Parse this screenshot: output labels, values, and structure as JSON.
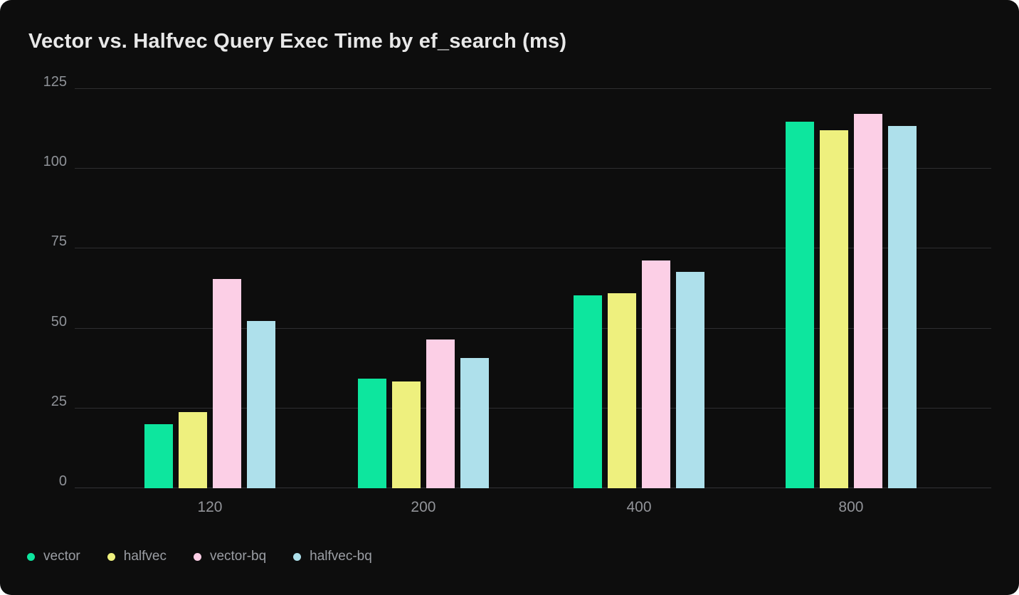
{
  "chart_data": {
    "type": "bar",
    "title": "Vector vs. Halfvec Query Exec Time by ef_search (ms)",
    "xlabel": "",
    "ylabel": "",
    "categories": [
      "120",
      "200",
      "400",
      "800"
    ],
    "series": [
      {
        "name": "vector",
        "color": "#0de69e",
        "values": [
          20.1,
          34.4,
          60.3,
          114.7
        ]
      },
      {
        "name": "halfvec",
        "color": "#eef07e",
        "values": [
          23.8,
          33.5,
          61.1,
          112.0
        ]
      },
      {
        "name": "vector-bq",
        "color": "#fccfe6",
        "values": [
          65.5,
          46.6,
          71.4,
          117.2
        ]
      },
      {
        "name": "halfvec-bq",
        "color": "#aee0eb",
        "values": [
          52.3,
          40.7,
          67.8,
          113.5
        ]
      }
    ],
    "y_ticks": [
      "0",
      "25",
      "50",
      "75",
      "100",
      "125"
    ],
    "ylim": [
      0,
      125
    ],
    "grid": "horizontal",
    "legend_position": "bottom-left",
    "colors": {
      "card_background": "#0d0d0d",
      "page_background": "#ffffff",
      "gridline": "#2e2e30",
      "title_text": "#e8e8e8",
      "tick_text": "#8f9298",
      "legend_text": "#9b9ea4"
    }
  }
}
